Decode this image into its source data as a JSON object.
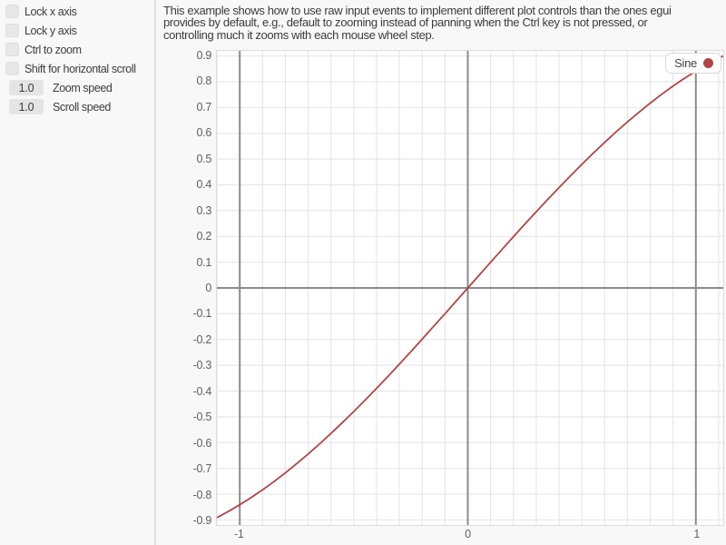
{
  "colors": {
    "panel_bg": "#f8f8f8",
    "plot_bg": "#ffffff",
    "grid_minor": "#e7e7e7",
    "grid_major": "#8b8b8b",
    "curve": "#b34444",
    "text": "#3c3c3c"
  },
  "sidebar": {
    "checkboxes": [
      {
        "label": "Lock x axis",
        "checked": false
      },
      {
        "label": "Lock y axis",
        "checked": false
      },
      {
        "label": "Ctrl to zoom",
        "checked": false
      },
      {
        "label": "Shift for horizontal scroll",
        "checked": false
      }
    ],
    "drag_values": [
      {
        "value": "1.0",
        "label": "Zoom speed"
      },
      {
        "value": "1.0",
        "label": "Scroll speed"
      }
    ]
  },
  "description": {
    "lines": [
      "This example shows how to use raw input events to implement different plot controls than the ones egui",
      "provides by default, e.g., default to zooming instead of panning when the Ctrl key is not pressed, or",
      "controlling much it zooms with each mouse wheel step."
    ]
  },
  "chart_data": {
    "type": "line",
    "title": "",
    "xlabel": "",
    "ylabel": "",
    "xlim": [
      -1.1,
      1.12
    ],
    "ylim": [
      -0.92,
      0.92
    ],
    "grid": true,
    "grid_step": 0.1,
    "xticks": [
      "-1",
      "0",
      "1"
    ],
    "yticks": [
      "0.9",
      "0.8",
      "0.7",
      "0.6",
      "0.5",
      "0.4",
      "0.3",
      "0.2",
      "0.1",
      "0",
      "-0.1",
      "-0.2",
      "-0.3",
      "-0.4",
      "-0.5",
      "-0.6",
      "-0.7",
      "-0.8",
      "-0.9"
    ],
    "major_x": [
      -1,
      0,
      1
    ],
    "major_y": [
      0
    ],
    "legend": {
      "position": "top-right",
      "entries": [
        {
          "label": "Sine",
          "color": "#b34444"
        }
      ]
    },
    "series": [
      {
        "name": "Sine",
        "color": "#b34444",
        "points": [
          [
            -1.1,
            -0.8912
          ],
          [
            -1.05,
            -0.8674
          ],
          [
            -1.0,
            -0.8415
          ],
          [
            -0.95,
            -0.8134
          ],
          [
            -0.9,
            -0.7833
          ],
          [
            -0.85,
            -0.7513
          ],
          [
            -0.8,
            -0.7174
          ],
          [
            -0.75,
            -0.6816
          ],
          [
            -0.7,
            -0.6442
          ],
          [
            -0.65,
            -0.6052
          ],
          [
            -0.6,
            -0.5646
          ],
          [
            -0.55,
            -0.5227
          ],
          [
            -0.5,
            -0.4794
          ],
          [
            -0.45,
            -0.435
          ],
          [
            -0.4,
            -0.3894
          ],
          [
            -0.35,
            -0.3429
          ],
          [
            -0.3,
            -0.2955
          ],
          [
            -0.25,
            -0.2474
          ],
          [
            -0.2,
            -0.1987
          ],
          [
            -0.15,
            -0.1494
          ],
          [
            -0.1,
            -0.0998
          ],
          [
            -0.05,
            -0.05
          ],
          [
            0.0,
            0.0
          ],
          [
            0.05,
            0.05
          ],
          [
            0.1,
            0.0998
          ],
          [
            0.15,
            0.1494
          ],
          [
            0.2,
            0.1987
          ],
          [
            0.25,
            0.2474
          ],
          [
            0.3,
            0.2955
          ],
          [
            0.35,
            0.3429
          ],
          [
            0.4,
            0.3894
          ],
          [
            0.45,
            0.435
          ],
          [
            0.5,
            0.4794
          ],
          [
            0.55,
            0.5227
          ],
          [
            0.6,
            0.5646
          ],
          [
            0.65,
            0.6052
          ],
          [
            0.7,
            0.6442
          ],
          [
            0.75,
            0.6816
          ],
          [
            0.8,
            0.7174
          ],
          [
            0.85,
            0.7513
          ],
          [
            0.9,
            0.7833
          ],
          [
            0.95,
            0.8134
          ],
          [
            1.0,
            0.8415
          ],
          [
            1.05,
            0.8674
          ],
          [
            1.1,
            0.8912
          ],
          [
            1.12,
            0.9001
          ]
        ]
      }
    ]
  }
}
